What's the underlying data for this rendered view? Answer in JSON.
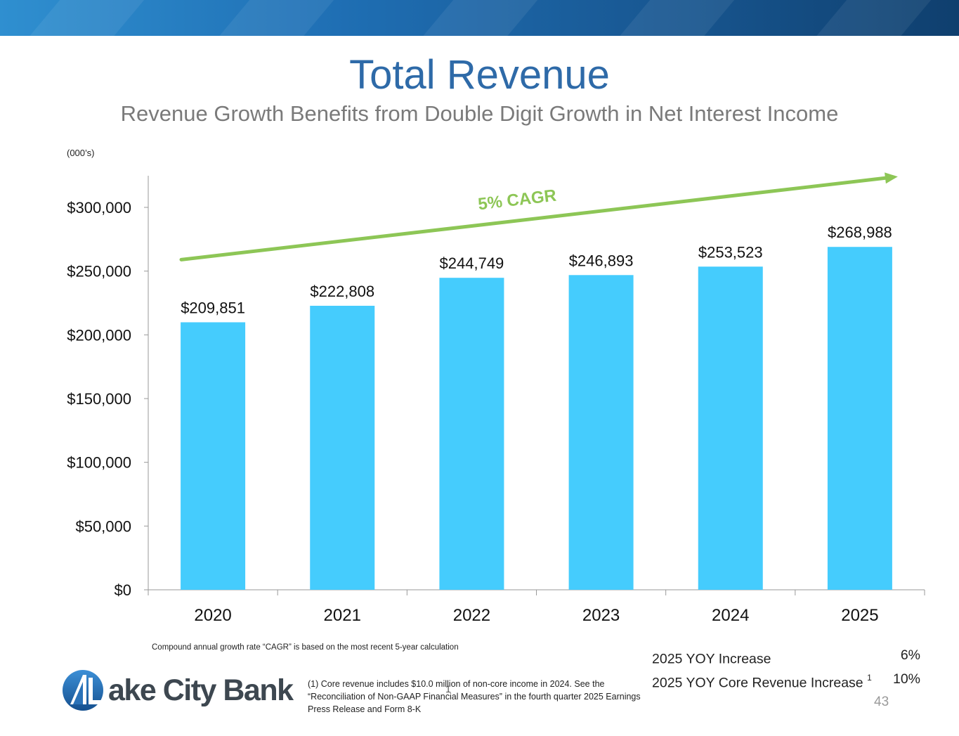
{
  "header": {
    "title": "Total Revenue",
    "subtitle": "Revenue Growth Benefits from Double Digit Growth in Net Interest Income",
    "units": "(000’s)"
  },
  "colors": {
    "bar": "#45ccfd",
    "trend": "#8dc656",
    "title": "#2e6aa8",
    "axis": "#999999"
  },
  "chart_data": {
    "type": "bar",
    "title": "Total Revenue",
    "xlabel": "",
    "ylabel": "",
    "categories": [
      "2020",
      "2021",
      "2022",
      "2023",
      "2024",
      "2025"
    ],
    "values": [
      209851,
      222808,
      244749,
      246893,
      253523,
      268988
    ],
    "value_labels": [
      "$209,851",
      "$222,808",
      "$244,749",
      "$246,893",
      "$253,523",
      "$268,988"
    ],
    "ylim": [
      0,
      325000
    ],
    "yticks": [
      0,
      50000,
      100000,
      150000,
      200000,
      250000,
      300000
    ],
    "ytick_labels": [
      "$0",
      "$50,000",
      "$100,000",
      "$150,000",
      "$200,000",
      "$250,000",
      "$300,000"
    ],
    "grid": false,
    "trend_annotation": "5% CAGR",
    "trend_start_value": 259000,
    "trend_end_value": 323000
  },
  "footnotes": {
    "cagr": "Compound annual growth rate “CAGR” is based on the most recent 5-year calculation",
    "core_revenue": "(1) Core revenue includes $10.0 million of non-core income in 2024. See the “Reconciliation of Non-GAAP Financial Measures” in the fourth quarter 2025 Earnings Press Release and Form 8-K",
    "stray_mark": "1"
  },
  "stats": [
    {
      "label": "2025 YOY Increase",
      "superscript": "",
      "value": "6%"
    },
    {
      "label": "2025 YOY Core Revenue Increase",
      "superscript": "1",
      "value": "10%"
    }
  ],
  "logo": {
    "text": "ake City Bank"
  },
  "page_number": "43"
}
